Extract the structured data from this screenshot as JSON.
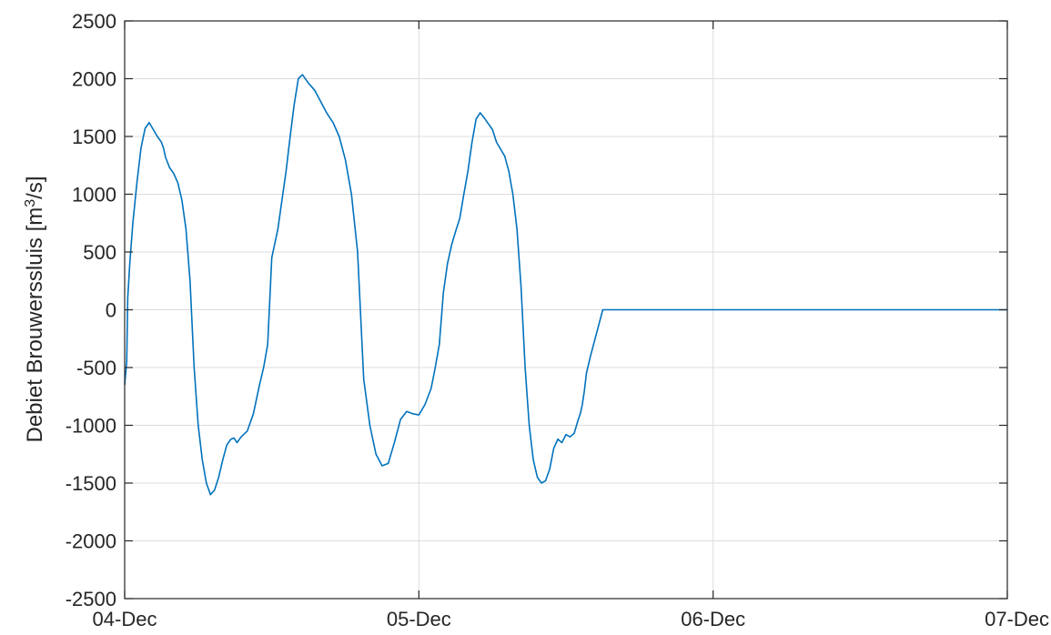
{
  "chart_data": {
    "type": "line",
    "title": "",
    "xlabel": "",
    "ylabel": {
      "prefix": "Debiet Brouwerssluis [m",
      "sup": "3",
      "suffix": "/s]"
    },
    "xlim": [
      "2000-12-04T00:00",
      "2000-12-07T00:00"
    ],
    "ylim": [
      -2500,
      2500
    ],
    "x_ticks": [
      {
        "value": "2000-12-04T00:00",
        "label": "04-Dec"
      },
      {
        "value": "2000-12-05T00:00",
        "label": "05-Dec"
      },
      {
        "value": "2000-12-06T00:00",
        "label": "06-Dec"
      },
      {
        "value": "2000-12-07T00:00",
        "label": "07-Dec"
      }
    ],
    "y_ticks": [
      2500,
      2000,
      1500,
      1000,
      500,
      0,
      -500,
      -1000,
      -1500,
      -2000,
      -2500
    ],
    "y_tick_labels": [
      "2500",
      "2000",
      "1500",
      "1000",
      "500",
      "0",
      "-500",
      "-1000",
      "-1500",
      "-2000",
      "-2500"
    ],
    "grid": true,
    "colors": {
      "series": "#0072bd",
      "grid": "#dcdcdc",
      "axis": "#262626"
    },
    "series": [
      {
        "x": [
          "2000-12-04T00:00",
          "2000-12-04T00:10",
          "2000-12-04T00:15",
          "2000-12-04T00:25",
          "2000-12-04T00:40",
          "2000-12-04T01:00",
          "2000-12-04T01:20",
          "2000-12-04T01:40",
          "2000-12-04T02:00",
          "2000-12-04T02:20",
          "2000-12-04T02:40",
          "2000-12-04T03:00",
          "2000-12-04T03:10",
          "2000-12-04T03:20",
          "2000-12-04T03:40",
          "2000-12-04T04:00",
          "2000-12-04T04:20",
          "2000-12-04T04:40",
          "2000-12-04T05:00",
          "2000-12-04T05:20",
          "2000-12-04T05:40",
          "2000-12-04T06:00",
          "2000-12-04T06:20",
          "2000-12-04T06:40",
          "2000-12-04T07:00",
          "2000-12-04T07:20",
          "2000-12-04T07:40",
          "2000-12-04T08:00",
          "2000-12-04T08:20",
          "2000-12-04T08:40",
          "2000-12-04T08:55",
          "2000-12-04T09:10",
          "2000-12-04T09:30",
          "2000-12-04T10:00",
          "2000-12-04T10:30",
          "2000-12-04T11:00",
          "2000-12-04T11:20",
          "2000-12-04T11:40",
          "2000-12-04T12:00",
          "2000-12-04T12:30",
          "2000-12-04T12:50",
          "2000-12-04T13:10",
          "2000-12-04T13:30",
          "2000-12-04T13:50",
          "2000-12-04T14:10",
          "2000-12-04T14:30",
          "2000-12-04T15:00",
          "2000-12-04T15:30",
          "2000-12-04T16:00",
          "2000-12-04T16:30",
          "2000-12-04T17:00",
          "2000-12-04T17:30",
          "2000-12-04T18:00",
          "2000-12-04T18:30",
          "2000-12-04T19:00",
          "2000-12-04T19:30",
          "2000-12-04T20:00",
          "2000-12-04T20:30",
          "2000-12-04T21:00",
          "2000-12-04T21:30",
          "2000-12-04T22:00",
          "2000-12-04T22:30",
          "2000-12-04T23:00",
          "2000-12-04T23:30",
          "2000-12-05T00:00",
          "2000-12-05T00:30",
          "2000-12-05T01:00",
          "2000-12-05T01:20",
          "2000-12-05T01:40",
          "2000-12-05T02:00",
          "2000-12-05T02:20",
          "2000-12-05T02:40",
          "2000-12-05T03:00",
          "2000-12-05T03:20",
          "2000-12-05T03:40",
          "2000-12-05T04:00",
          "2000-12-05T04:20",
          "2000-12-05T04:40",
          "2000-12-05T05:00",
          "2000-12-05T05:20",
          "2000-12-05T05:40",
          "2000-12-05T06:00",
          "2000-12-05T06:20",
          "2000-12-05T06:40",
          "2000-12-05T07:00",
          "2000-12-05T07:20",
          "2000-12-05T07:40",
          "2000-12-05T08:00",
          "2000-12-05T08:20",
          "2000-12-05T08:40",
          "2000-12-05T09:00",
          "2000-12-05T09:20",
          "2000-12-05T09:40",
          "2000-12-05T10:00",
          "2000-12-05T10:20",
          "2000-12-05T10:40",
          "2000-12-05T11:00",
          "2000-12-05T11:20",
          "2000-12-05T11:40",
          "2000-12-05T12:00",
          "2000-12-05T12:20",
          "2000-12-05T12:40",
          "2000-12-05T13:00",
          "2000-12-05T13:10",
          "2000-12-05T13:20",
          "2000-12-05T13:30",
          "2000-12-05T13:40",
          "2000-12-05T14:00",
          "2000-12-05T14:30",
          "2000-12-05T15:00",
          "2000-12-05T15:30",
          "2000-12-05T16:00",
          "2000-12-05T16:30",
          "2000-12-05T17:00",
          "2000-12-05T18:00",
          "2000-12-05T20:00",
          "2000-12-06T00:00",
          "2000-12-06T12:00",
          "2000-12-07T00:00"
        ],
        "y": [
          -650,
          -450,
          100,
          400,
          750,
          1100,
          1400,
          1570,
          1620,
          1560,
          1500,
          1450,
          1400,
          1320,
          1230,
          1180,
          1100,
          950,
          700,
          250,
          -500,
          -1000,
          -1300,
          -1500,
          -1600,
          -1560,
          -1450,
          -1300,
          -1170,
          -1120,
          -1110,
          -1150,
          -1100,
          -1050,
          -900,
          -650,
          -500,
          -300,
          450,
          700,
          950,
          1200,
          1500,
          1780,
          2000,
          2035,
          1960,
          1900,
          1800,
          1700,
          1620,
          1500,
          1300,
          1000,
          500,
          -600,
          -1000,
          -1250,
          -1350,
          -1330,
          -1150,
          -950,
          -880,
          -900,
          -910,
          -820,
          -680,
          -500,
          -300,
          150,
          400,
          560,
          680,
          790,
          1000,
          1200,
          1450,
          1650,
          1705,
          1660,
          1610,
          1560,
          1450,
          1390,
          1330,
          1200,
          1000,
          700,
          200,
          -500,
          -1000,
          -1300,
          -1450,
          -1500,
          -1480,
          -1380,
          -1200,
          -1120,
          -1150,
          -1080,
          -1100,
          -1070,
          -950,
          -900,
          -820,
          -700,
          -550,
          -400,
          -200,
          0,
          0,
          0,
          0,
          0,
          0,
          0,
          0,
          0,
          0
        ]
      }
    ]
  }
}
